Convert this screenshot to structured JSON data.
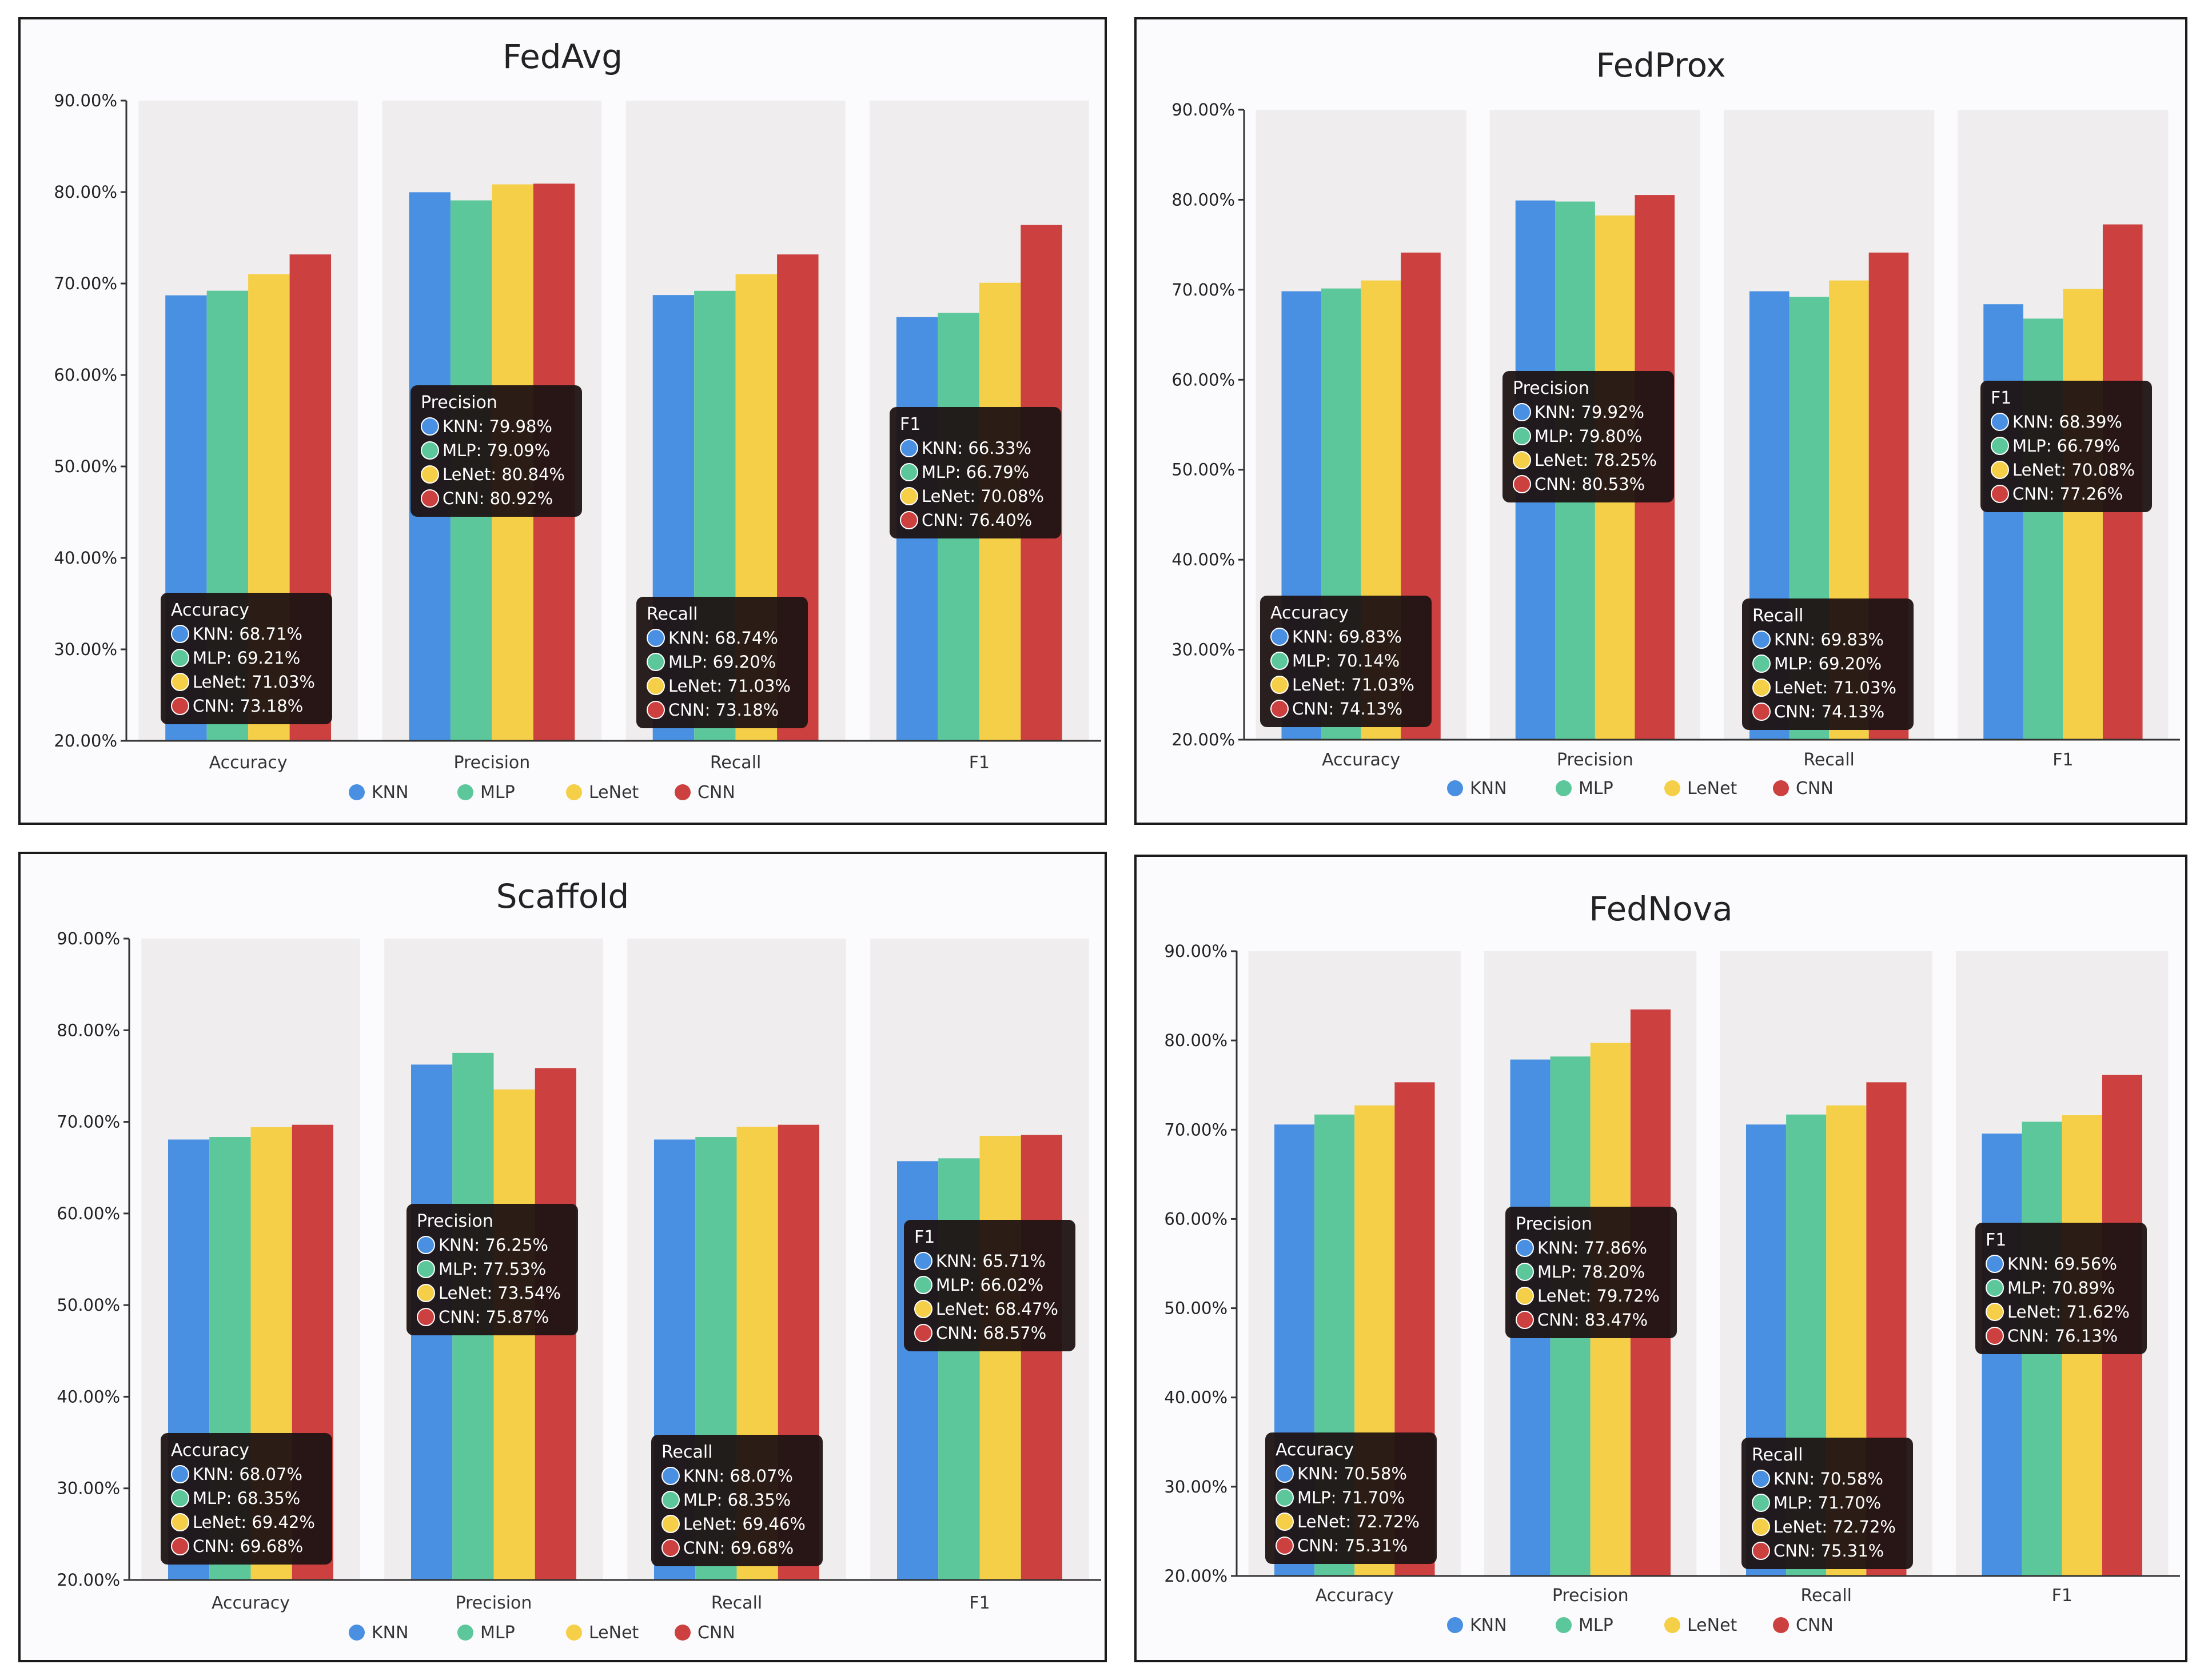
{
  "colors": {
    "KNN": "#4a90e2",
    "MLP": "#5cc79a",
    "LeNet": "#f5cf47",
    "CNN": "#cc4040",
    "band": "#efeded",
    "tooltip_bg": "#1e1212"
  },
  "chart_data": [
    {
      "type": "bar",
      "title": "FedAvg",
      "categories": [
        "Accuracy",
        "Precision",
        "Recall",
        "F1"
      ],
      "ylim": [
        20,
        90
      ],
      "yticks": [
        "20.00%",
        "30.00%",
        "40.00%",
        "50.00%",
        "60.00%",
        "70.00%",
        "80.00%",
        "90.00%"
      ],
      "legend": [
        "KNN",
        "MLP",
        "LeNet",
        "CNN"
      ],
      "legend_position": "bottom",
      "grid": false,
      "series": [
        {
          "name": "KNN",
          "values": [
            68.71,
            79.98,
            68.74,
            66.33
          ]
        },
        {
          "name": "MLP",
          "values": [
            69.21,
            79.09,
            69.2,
            66.79
          ]
        },
        {
          "name": "LeNet",
          "values": [
            71.03,
            80.84,
            71.03,
            70.08
          ]
        },
        {
          "name": "CNN",
          "values": [
            73.18,
            80.92,
            73.18,
            76.4
          ]
        }
      ],
      "tooltips": [
        {
          "title": "Accuracy",
          "lines": [
            "KNN: 68.71%",
            "MLP: 69.21%",
            "LeNet: 71.03%",
            "CNN: 73.18%"
          ]
        },
        {
          "title": "Precision",
          "lines": [
            "KNN: 79.98%",
            "MLP: 79.09%",
            "LeNet: 80.84%",
            "CNN: 80.92%"
          ]
        },
        {
          "title": "Recall",
          "lines": [
            "KNN: 68.74%",
            "MLP: 69.20%",
            "LeNet: 71.03%",
            "CNN: 73.18%"
          ]
        },
        {
          "title": "F1",
          "lines": [
            "KNN: 66.33%",
            "MLP: 66.79%",
            "LeNet: 70.08%",
            "CNN: 76.40%"
          ]
        }
      ]
    },
    {
      "type": "bar",
      "title": "FedProx",
      "categories": [
        "Accuracy",
        "Precision",
        "Recall",
        "F1"
      ],
      "ylim": [
        20,
        90
      ],
      "yticks": [
        "20.00%",
        "30.00%",
        "40.00%",
        "50.00%",
        "60.00%",
        "70.00%",
        "80.00%",
        "90.00%"
      ],
      "legend": [
        "KNN",
        "MLP",
        "LeNet",
        "CNN"
      ],
      "legend_position": "bottom",
      "grid": false,
      "series": [
        {
          "name": "KNN",
          "values": [
            69.83,
            79.92,
            69.83,
            68.39
          ]
        },
        {
          "name": "MLP",
          "values": [
            70.14,
            79.8,
            69.2,
            66.79
          ]
        },
        {
          "name": "LeNet",
          "values": [
            71.03,
            78.25,
            71.03,
            70.08
          ]
        },
        {
          "name": "CNN",
          "values": [
            74.13,
            80.53,
            74.13,
            77.26
          ]
        }
      ],
      "tooltips": [
        {
          "title": "Accuracy",
          "lines": [
            "KNN: 69.83%",
            "MLP: 70.14%",
            "LeNet: 71.03%",
            "CNN: 74.13%"
          ]
        },
        {
          "title": "Precision",
          "lines": [
            "KNN: 79.92%",
            "MLP: 79.80%",
            "LeNet: 78.25%",
            "CNN: 80.53%"
          ]
        },
        {
          "title": "Recall",
          "lines": [
            "KNN: 69.83%",
            "MLP: 69.20%",
            "LeNet: 71.03%",
            "CNN: 74.13%"
          ]
        },
        {
          "title": "F1",
          "lines": [
            "KNN: 68.39%",
            "MLP: 66.79%",
            "LeNet: 70.08%",
            "CNN: 77.26%"
          ]
        }
      ]
    },
    {
      "type": "bar",
      "title": "Scaffold",
      "categories": [
        "Accuracy",
        "Precision",
        "Recall",
        "F1"
      ],
      "ylim": [
        20,
        90
      ],
      "yticks": [
        "20.00%",
        "30.00%",
        "40.00%",
        "50.00%",
        "60.00%",
        "70.00%",
        "80.00%",
        "90.00%"
      ],
      "legend": [
        "KNN",
        "MLP",
        "LeNet",
        "CNN"
      ],
      "legend_position": "bottom",
      "grid": false,
      "series": [
        {
          "name": "KNN",
          "values": [
            68.07,
            76.25,
            68.07,
            65.71
          ]
        },
        {
          "name": "MLP",
          "values": [
            68.35,
            77.53,
            68.35,
            66.02
          ]
        },
        {
          "name": "LeNet",
          "values": [
            69.42,
            73.54,
            69.46,
            68.47
          ]
        },
        {
          "name": "CNN",
          "values": [
            69.68,
            75.87,
            69.68,
            68.57
          ]
        }
      ],
      "tooltips": [
        {
          "title": "Accuracy",
          "lines": [
            "KNN: 68.07%",
            "MLP: 68.35%",
            "LeNet: 69.42%",
            "CNN: 69.68%"
          ]
        },
        {
          "title": "Precision",
          "lines": [
            "KNN: 76.25%",
            "MLP: 77.53%",
            "LeNet: 73.54%",
            "CNN: 75.87%"
          ]
        },
        {
          "title": "Recall",
          "lines": [
            "KNN: 68.07%",
            "MLP: 68.35%",
            "LeNet: 69.46%",
            "CNN: 69.68%"
          ]
        },
        {
          "title": "F1",
          "lines": [
            "KNN: 65.71%",
            "MLP: 66.02%",
            "LeNet: 68.47%",
            "CNN: 68.57%"
          ]
        }
      ]
    },
    {
      "type": "bar",
      "title": "FedNova",
      "categories": [
        "Accuracy",
        "Precision",
        "Recall",
        "F1"
      ],
      "ylim": [
        20,
        90
      ],
      "yticks": [
        "20.00%",
        "30.00%",
        "40.00%",
        "50.00%",
        "60.00%",
        "70.00%",
        "80.00%",
        "90.00%"
      ],
      "legend": [
        "KNN",
        "MLP",
        "LeNet",
        "CNN"
      ],
      "legend_position": "bottom",
      "grid": false,
      "series": [
        {
          "name": "KNN",
          "values": [
            70.58,
            77.86,
            70.58,
            69.56
          ]
        },
        {
          "name": "MLP",
          "values": [
            71.7,
            78.2,
            71.7,
            70.89
          ]
        },
        {
          "name": "LeNet",
          "values": [
            72.72,
            79.72,
            72.72,
            71.62
          ]
        },
        {
          "name": "CNN",
          "values": [
            75.31,
            83.47,
            75.31,
            76.13
          ]
        }
      ],
      "tooltips": [
        {
          "title": "Accuracy",
          "lines": [
            "KNN: 70.58%",
            "MLP: 71.70%",
            "LeNet: 72.72%",
            "CNN: 75.31%"
          ]
        },
        {
          "title": "Precision",
          "lines": [
            "KNN: 77.86%",
            "MLP: 78.20%",
            "LeNet: 79.72%",
            "CNN: 83.47%"
          ]
        },
        {
          "title": "Recall",
          "lines": [
            "KNN: 70.58%",
            "MLP: 71.70%",
            "LeNet: 72.72%",
            "CNN: 75.31%"
          ]
        },
        {
          "title": "F1",
          "lines": [
            "KNN: 69.56%",
            "MLP: 70.89%",
            "LeNet: 71.62%",
            "CNN: 76.13%"
          ]
        }
      ]
    }
  ]
}
